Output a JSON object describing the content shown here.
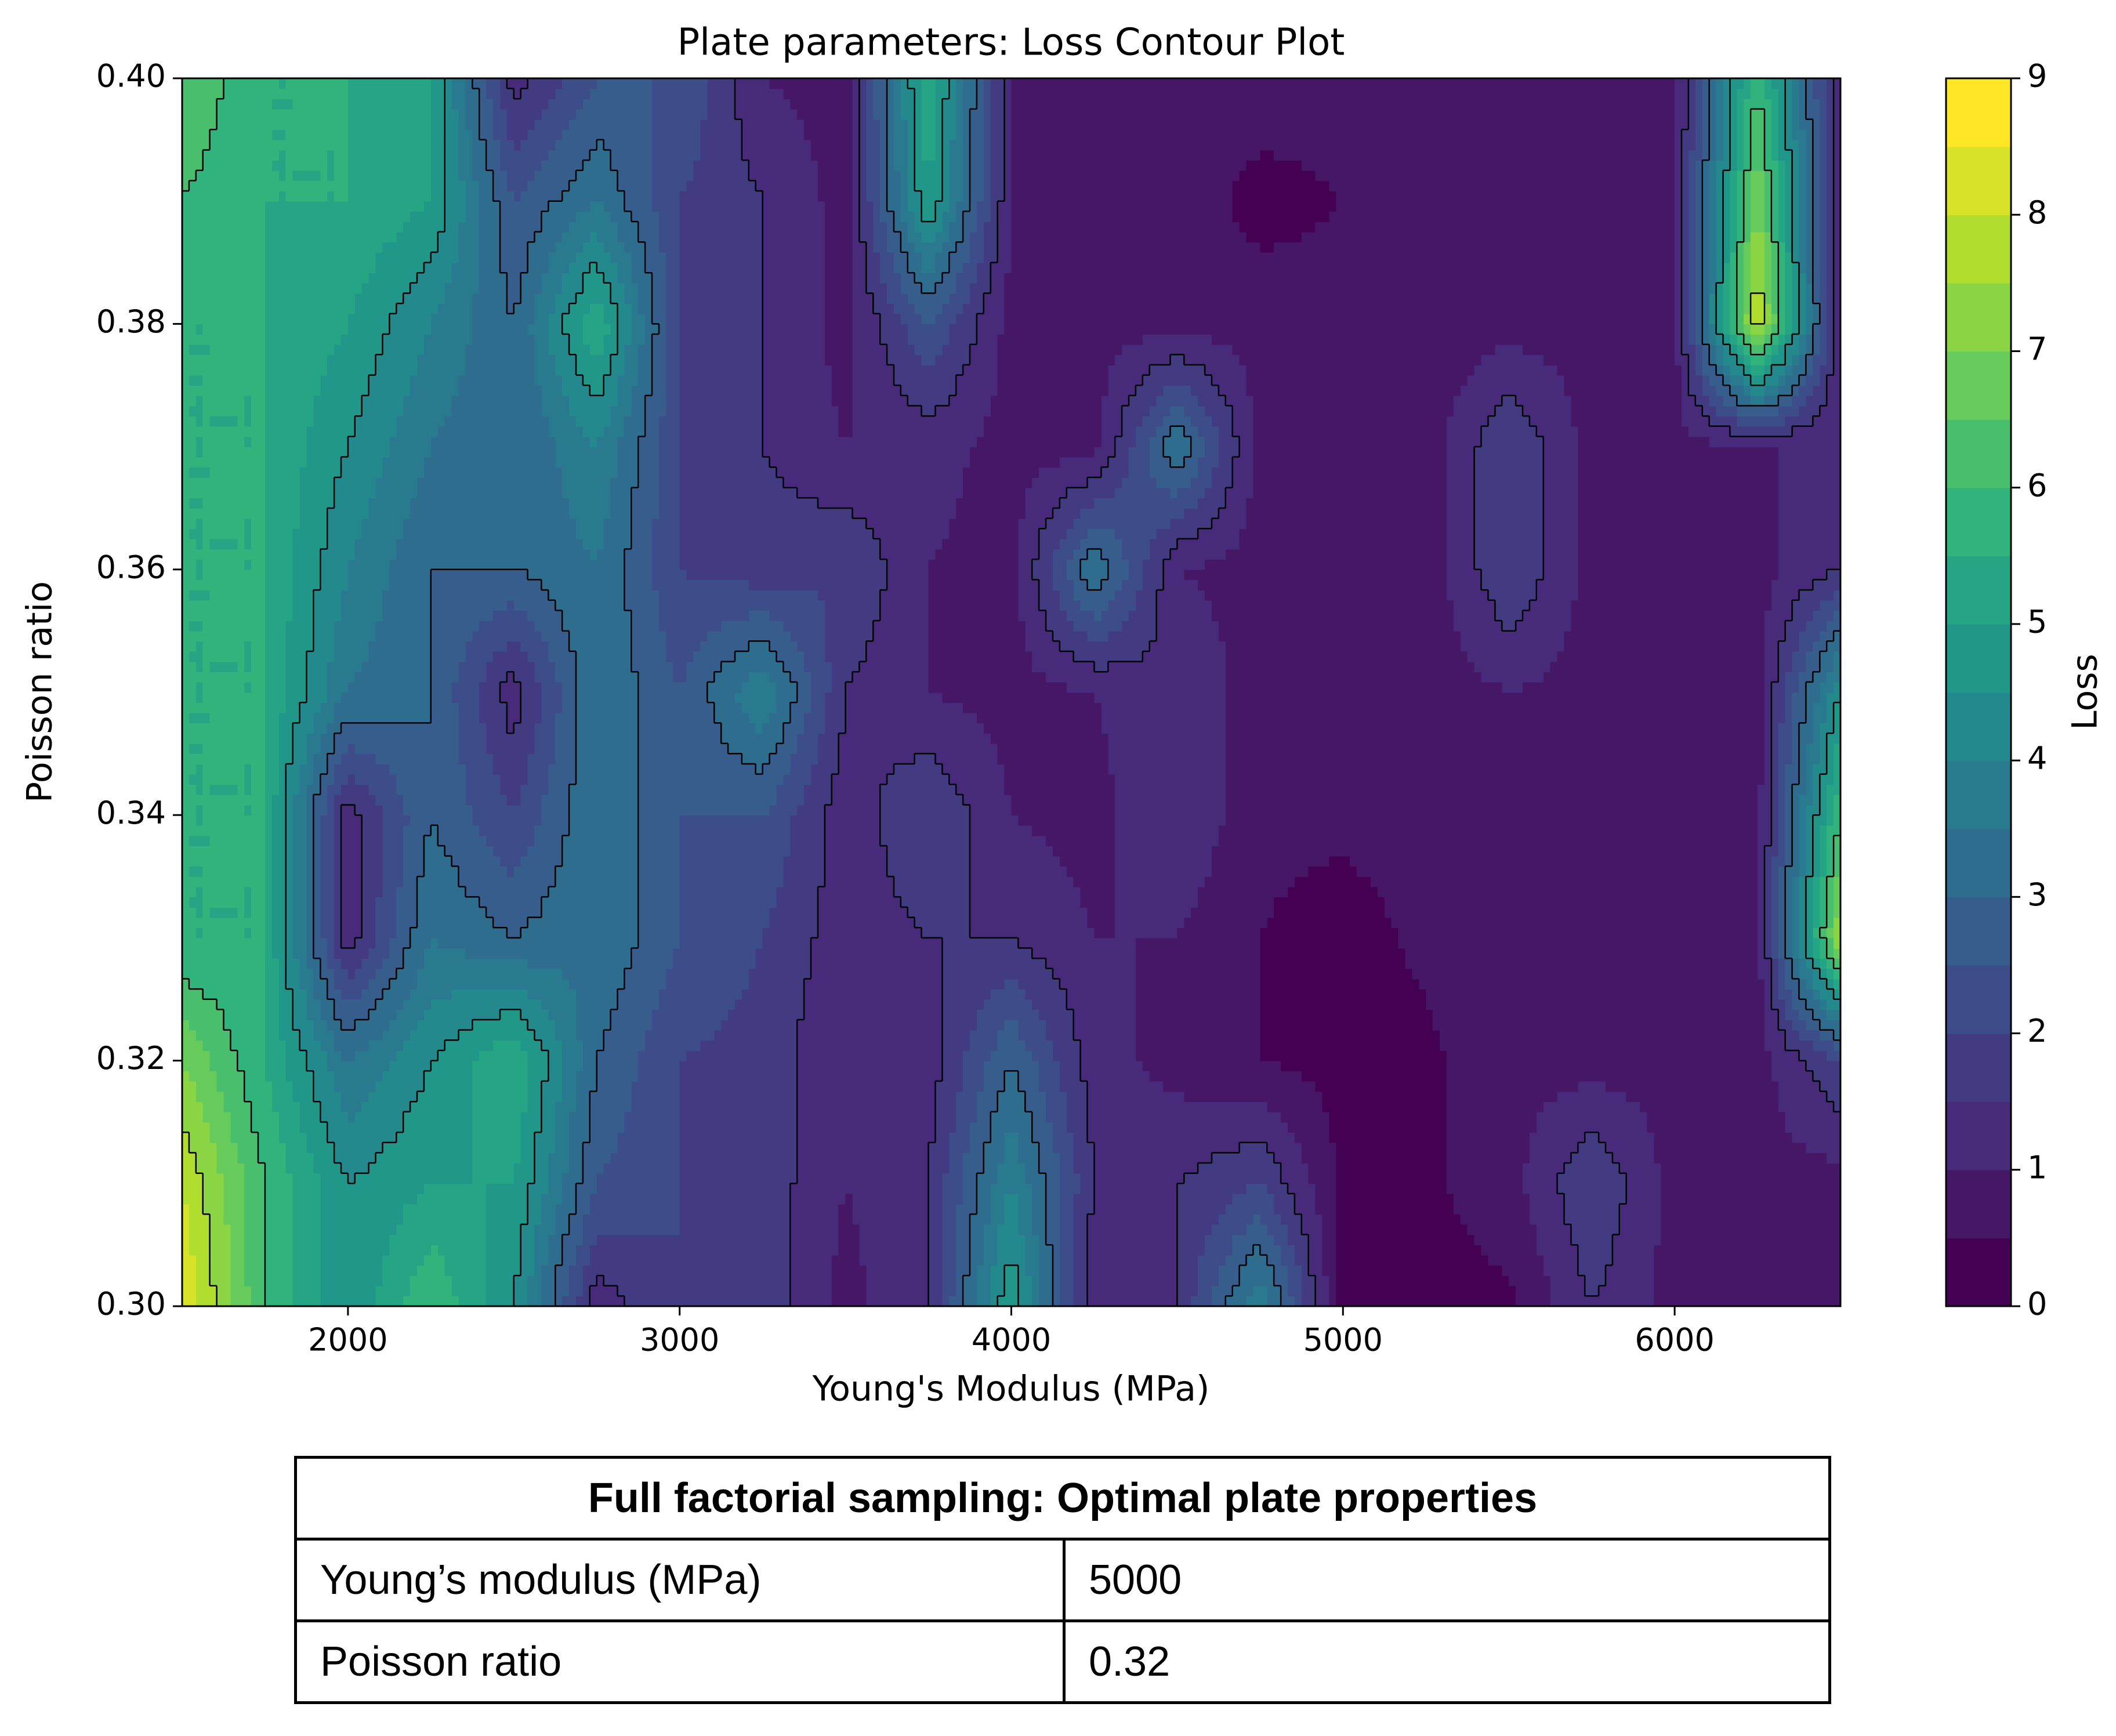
{
  "chart_data": {
    "type": "contourf",
    "title": "Plate parameters: Loss Contour Plot",
    "x_label": "Young's Modulus (MPa)",
    "y_label": "Poisson ratio",
    "colorbar_label": "Loss",
    "colormap": "viridis",
    "x": [
      1500,
      1750,
      2000,
      2250,
      2500,
      2750,
      3000,
      3250,
      3500,
      3750,
      4000,
      4250,
      4500,
      4750,
      5000,
      5250,
      5500,
      5750,
      6000,
      6250,
      6500
    ],
    "y": [
      0.3,
      0.31,
      0.32,
      0.33,
      0.34,
      0.35,
      0.36,
      0.37,
      0.38,
      0.39,
      0.4
    ],
    "z": [
      [
        8.5,
        6,
        4.5,
        6,
        4.5,
        1.2,
        2,
        1.8,
        0.8,
        1.5,
        5,
        1,
        1.5,
        4,
        0.3,
        0.3,
        0.4,
        1.5,
        0.8,
        0.8,
        0.8
      ],
      [
        8,
        6,
        4.5,
        5,
        5,
        2.5,
        2,
        1.8,
        1,
        1.5,
        4,
        1.5,
        1.5,
        2,
        0.4,
        0.4,
        0.8,
        2,
        0.8,
        0.8,
        0.8
      ],
      [
        7,
        5.5,
        3.5,
        4.5,
        5.5,
        3,
        2,
        1.8,
        1,
        1.2,
        3,
        1.2,
        0.8,
        0.5,
        0.3,
        0.4,
        0.8,
        0.8,
        0.8,
        0.8,
        2
      ],
      [
        5.5,
        5.5,
        1.2,
        3.5,
        3,
        3.5,
        2.5,
        2,
        1.2,
        1.5,
        1.5,
        1,
        1,
        0.5,
        0.3,
        0.6,
        0.8,
        0.8,
        0.8,
        0.8,
        7.5
      ],
      [
        5.5,
        5.5,
        1.2,
        3,
        2,
        3.5,
        2.5,
        2.5,
        1.2,
        2,
        1,
        0.8,
        1.5,
        0.6,
        0.6,
        0.7,
        0.8,
        0.8,
        0.8,
        0.8,
        6
      ],
      [
        5.5,
        5.5,
        3.5,
        3,
        1.2,
        3.5,
        2.5,
        4,
        1.5,
        1,
        0.8,
        1,
        1.5,
        0.7,
        0.7,
        0.7,
        1,
        0.8,
        0.8,
        0.8,
        4.5
      ],
      [
        5.5,
        5.5,
        4,
        3,
        3,
        3.5,
        2,
        1.7,
        2,
        1,
        0.8,
        3.5,
        1,
        0.8,
        0.7,
        0.7,
        2,
        0.8,
        0.8,
        0.8,
        1.5
      ],
      [
        5.5,
        5.5,
        4.5,
        3.5,
        3,
        4,
        2,
        1.5,
        1,
        1.2,
        0.8,
        0.8,
        3.5,
        0.8,
        0.7,
        0.7,
        2,
        0.8,
        0.8,
        1,
        1
      ],
      [
        5.5,
        5.5,
        5,
        4,
        3,
        5.5,
        2,
        1.5,
        0.8,
        2.5,
        0.8,
        0.8,
        0.8,
        0.8,
        0.7,
        0.7,
        0.8,
        0.8,
        0.8,
        8,
        1
      ],
      [
        6,
        5.5,
        5.5,
        5,
        2.5,
        3.5,
        2,
        1.5,
        0.8,
        5,
        1,
        0.8,
        0.8,
        0.3,
        0.5,
        0.7,
        0.8,
        0.8,
        0.8,
        7,
        1
      ],
      [
        6.5,
        5.5,
        5.5,
        5,
        1.2,
        2.5,
        2.5,
        1,
        0.8,
        5.5,
        1,
        0.8,
        0.8,
        0.8,
        0.7,
        0.7,
        0.8,
        0.8,
        0.8,
        6,
        1
      ]
    ],
    "levels": [
      0,
      0.5,
      1,
      1.5,
      2,
      2.5,
      3,
      3.5,
      4,
      4.5,
      5,
      5.5,
      6,
      6.5,
      7,
      7.5,
      8,
      8.5,
      9
    ],
    "line_levels": [
      1.5,
      3,
      4.5,
      6,
      7.5
    ],
    "xlim": [
      1500,
      6500
    ],
    "ylim": [
      0.3,
      0.4
    ],
    "xticks": [
      2000,
      3000,
      4000,
      5000,
      6000
    ],
    "yticks": [
      {
        "value": 0.3,
        "label": "0.30"
      },
      0.32,
      0.34,
      0.36,
      0.38,
      {
        "value": 0.4,
        "label": "0.40"
      }
    ],
    "clim": [
      0,
      9
    ],
    "cticks": [
      0,
      1,
      2,
      3,
      4,
      5,
      6,
      7,
      8,
      9
    ]
  },
  "table": {
    "title": "Full factorial sampling: Optimal plate properties",
    "rows": [
      [
        "Young’s modulus (MPa)",
        "5000"
      ],
      [
        "Poisson ratio",
        "0.32"
      ]
    ]
  }
}
